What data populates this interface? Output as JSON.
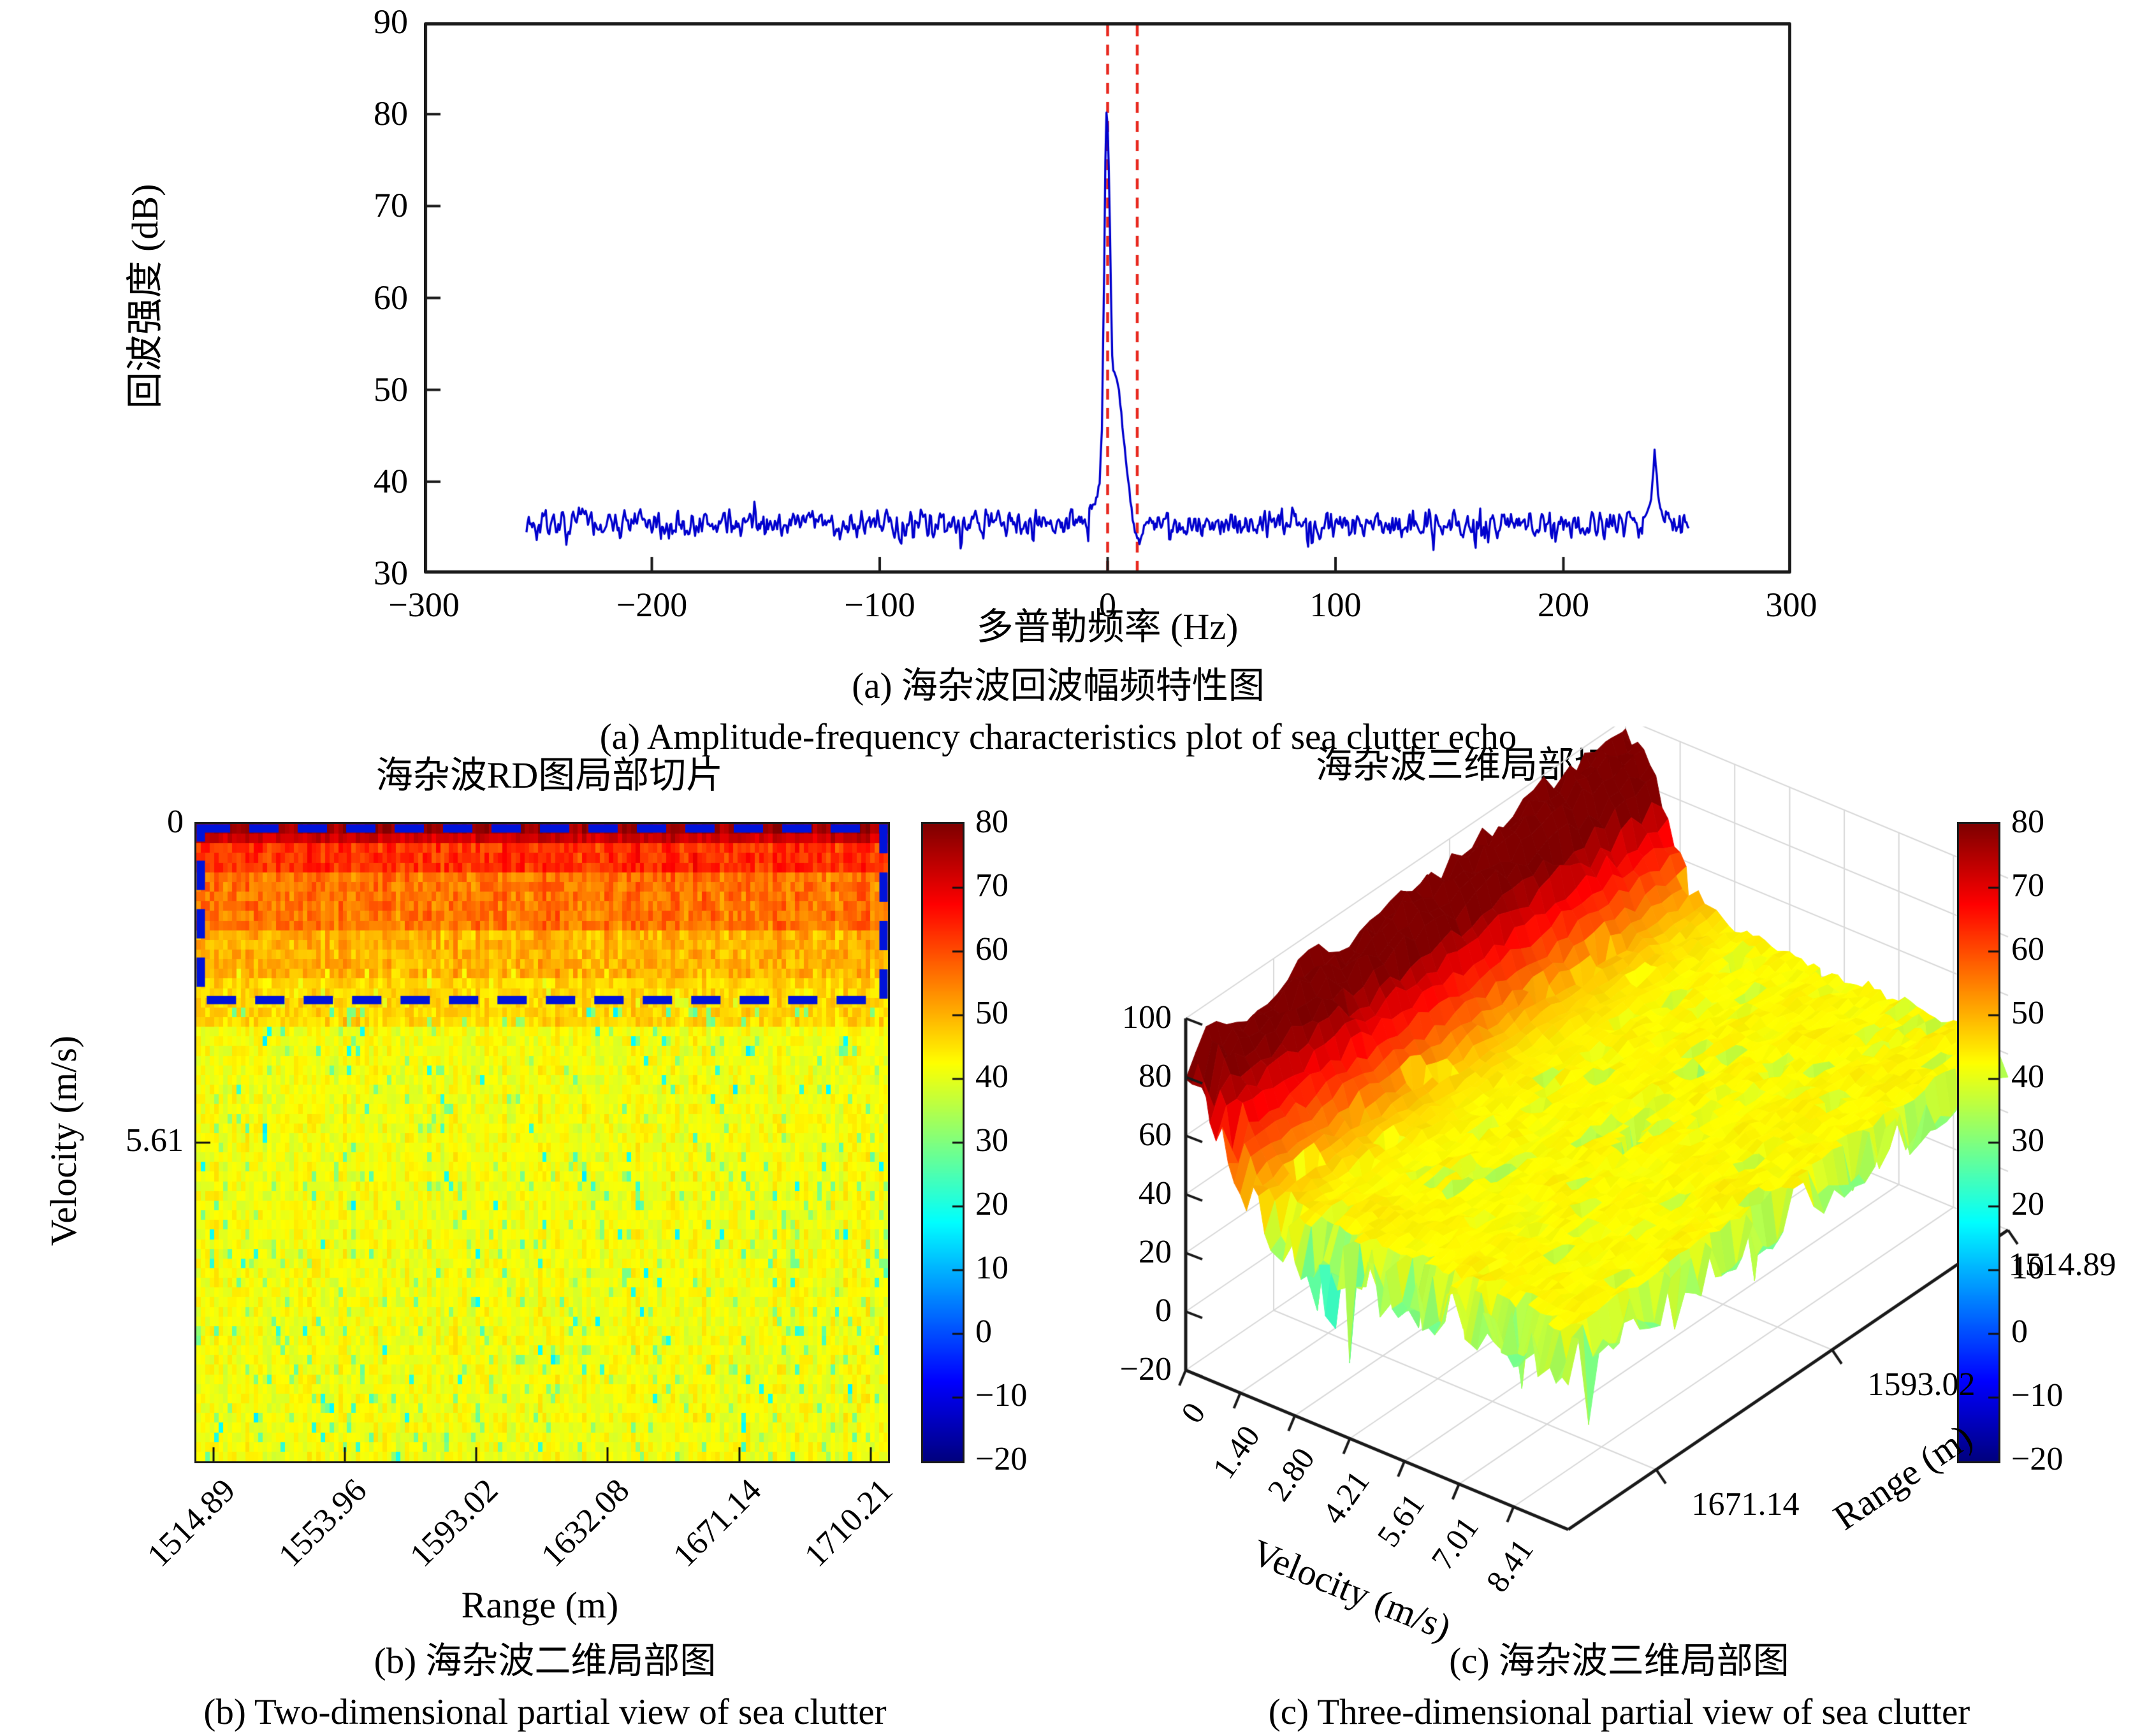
{
  "colors": {
    "background": "#ffffff",
    "line_blue": "#0000cd",
    "marker_red": "#e8281e",
    "roi_blue": "#0013d9",
    "axis": "#1a1a1a",
    "grid3d": "#d8d8d8"
  },
  "panel_a": {
    "ylabel": "回波强度 (dB)",
    "xlabel": "多普勒频率 (Hz)",
    "caption_cn": "(a) 海杂波回波幅频特性图",
    "caption_en": "(a) Amplitude-frequency characteristics plot of sea clutter echo",
    "x_tick_labels": [
      "−300",
      "−200",
      "−100",
      "0",
      "100",
      "200",
      "300"
    ],
    "y_tick_labels": [
      "90",
      "80",
      "70",
      "60",
      "50",
      "40",
      "30"
    ]
  },
  "panel_b": {
    "title": "海杂波RD图局部切片",
    "xlabel": "Range (m)",
    "ylabel": "Velocity (m/s)",
    "x_tick_labels": [
      "1514.89",
      "1553.96",
      "1593.02",
      "1632.08",
      "1671.14",
      "1710.21"
    ],
    "y_tick_labels": [
      "0",
      "5.61"
    ],
    "colorbar_tick_labels": [
      "80",
      "70",
      "60",
      "50",
      "40",
      "30",
      "20",
      "10",
      "0",
      "−10",
      "−20"
    ],
    "caption_cn": "(b) 海杂波二维局部图",
    "caption_en": "(b) Two-dimensional partial view of sea clutter"
  },
  "panel_c": {
    "title": "海杂波三维局部切片",
    "velocity_label": "Velocity (m/s)",
    "range_label": "Range (m)",
    "v_tick_labels": [
      "0",
      "1.40",
      "2.80",
      "4.21",
      "5.61",
      "7.01",
      "8.41"
    ],
    "r_tick_labels": [
      "1671.14",
      "1593.02",
      "1514.89"
    ],
    "z_tick_labels": [
      "100",
      "80",
      "60",
      "40",
      "20",
      "0",
      "−20"
    ],
    "colorbar_tick_labels": [
      "80",
      "70",
      "60",
      "50",
      "40",
      "30",
      "20",
      "10",
      "0",
      "−10",
      "−20"
    ],
    "caption_cn": "(c) 海杂波三维局部图",
    "caption_en": "(c) Three-dimensional partial view of sea clutter"
  },
  "chart_data": [
    {
      "type": "line",
      "xlabel": "多普勒频率 (Hz)",
      "ylabel": "回波强度 (dB)",
      "xlim": [
        -300,
        300
      ],
      "ylim": [
        30,
        90
      ],
      "x_data_range": [
        -255,
        255
      ],
      "baseline_db": 35.4,
      "baseline_noise_db": 1.7,
      "seed": 7,
      "peak_main": {
        "x_hz": 0,
        "y_db": 80.3
      },
      "secondary_peak": {
        "x_hz": 240,
        "y_db": 43.4
      },
      "marker_lines_hz": [
        0,
        13
      ],
      "peak_anchors": [
        [
          -8,
          37
        ],
        [
          -5,
          38
        ],
        [
          -3.5,
          40
        ],
        [
          -2.5,
          46
        ],
        [
          -1.5,
          63
        ],
        [
          -1,
          75
        ],
        [
          -0.5,
          80.3
        ],
        [
          0.2,
          78
        ],
        [
          0.8,
          71
        ],
        [
          1.4,
          62
        ],
        [
          2,
          54
        ],
        [
          2.6,
          51.5
        ],
        [
          3.4,
          51.8
        ],
        [
          4.2,
          50.6
        ],
        [
          5,
          49.8
        ],
        [
          6,
          47.5
        ],
        [
          7,
          45
        ],
        [
          8,
          42.5
        ],
        [
          9,
          40.3
        ],
        [
          10,
          38
        ],
        [
          11,
          36
        ],
        [
          12,
          34.6
        ],
        [
          13,
          33.8
        ],
        [
          14,
          33.4
        ],
        [
          15,
          34.2
        ],
        [
          16,
          35
        ],
        [
          18,
          35.8
        ],
        [
          20,
          35.6
        ]
      ],
      "spur_anchors": [
        [
          235,
          36
        ],
        [
          237,
          36.8
        ],
        [
          238.5,
          38.2
        ],
        [
          239.5,
          41
        ],
        [
          240,
          43.4
        ],
        [
          240.8,
          41.2
        ],
        [
          241.6,
          38.6
        ],
        [
          242.6,
          37
        ],
        [
          244,
          35.8
        ]
      ]
    },
    {
      "type": "heatmap",
      "title": "海杂波RD图局部切片",
      "xlabel": "Range (m)",
      "ylabel": "Velocity (m/s)",
      "x_ticks_m": [
        1514.89,
        1553.96,
        1593.02,
        1632.08,
        1671.14,
        1710.21
      ],
      "y_ticks_ms": [
        0,
        5.61
      ],
      "velocity_range_ms": [
        0,
        11.22
      ],
      "caxis_db": [
        -20,
        80
      ],
      "colorbar_ticks_db": [
        80,
        70,
        60,
        50,
        40,
        30,
        20,
        10,
        0,
        -10,
        -20
      ],
      "seed": 11,
      "cols": 156,
      "rows": 66,
      "band_profile_db": [
        [
          0.12,
          77
        ],
        [
          0.38,
          72.5
        ],
        [
          0.9,
          63
        ],
        [
          1.8,
          56
        ],
        [
          2.8,
          50
        ],
        [
          3.6,
          46.5
        ],
        [
          11.3,
          41.5
        ]
      ],
      "roi_box": {
        "v_from_ms": 0,
        "v_to_ms": 3.1,
        "style": "dashed"
      }
    },
    {
      "type": "surface3d",
      "title": "海杂波三维局部切片",
      "x_label": "Velocity (m/s)",
      "y_label": "Range (m)",
      "v_ticks_ms": [
        0,
        1.4,
        2.8,
        4.21,
        5.61,
        7.01,
        8.41
      ],
      "v_max_ms": 9.81,
      "r_ticks_m": [
        1671.14,
        1593.02,
        1514.89
      ],
      "r_range_m": [
        1514.89,
        1710.21
      ],
      "z_ticks_db": [
        100,
        80,
        60,
        40,
        20,
        0,
        -20
      ],
      "zlim_db": [
        -20,
        100
      ],
      "caxis_db": [
        -20,
        80
      ],
      "seed": 23,
      "plain_level_db": 43,
      "ridge": {
        "amp_front_db": 44,
        "amp_back_extra_db": 10,
        "gauss_width_ms": 1.35
      }
    }
  ]
}
